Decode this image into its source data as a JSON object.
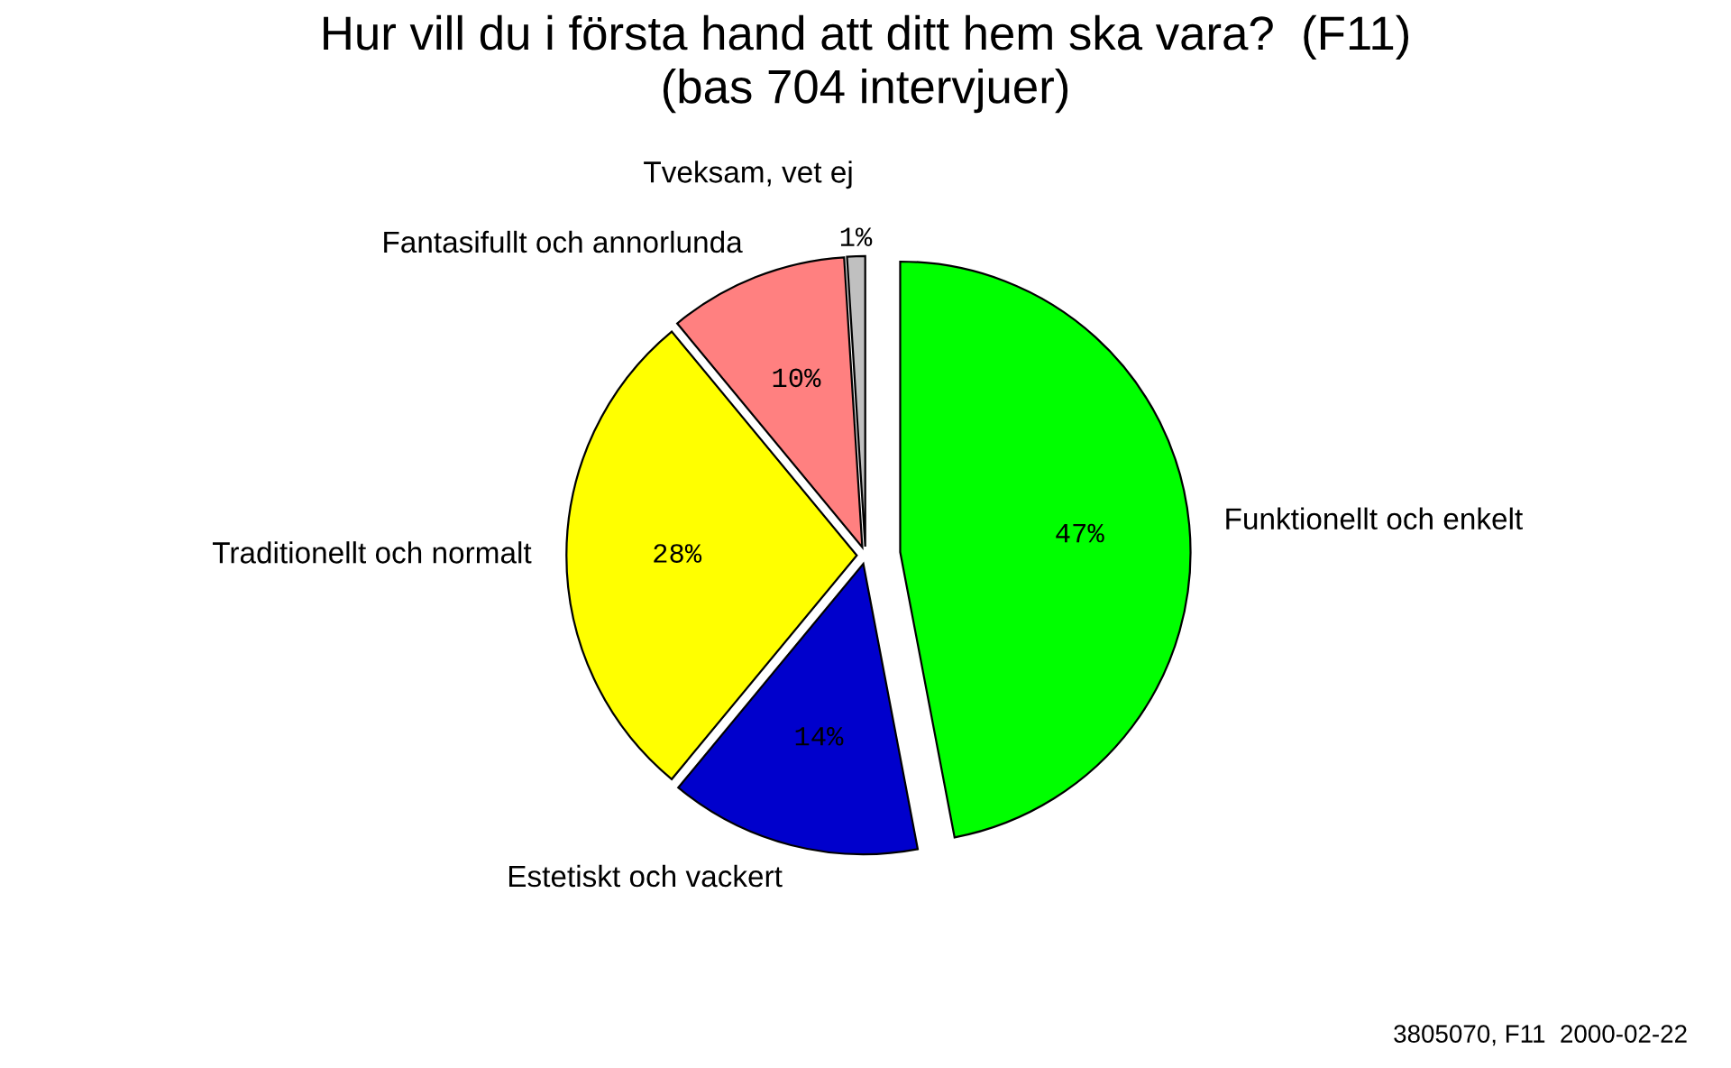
{
  "chart_data": {
    "type": "pie",
    "title": "Hur vill du i första hand att ditt hem ska vara?  (F11)",
    "subtitle": "(bas 704 intervjuer)",
    "categories": [
      "Funktionellt och enkelt",
      "Estetiskt och vackert",
      "Traditionellt och normalt",
      "Fantasifullt och annorlunda",
      "Tveksam, vet ej"
    ],
    "values": [
      47,
      14,
      28,
      10,
      1
    ],
    "value_labels": [
      "47%",
      "14%",
      "28%",
      "10%",
      "1%"
    ],
    "colors": [
      "#00ff00",
      "#0000cc",
      "#ffff00",
      "#ff8080",
      "#c0c0c0"
    ],
    "annotations": [
      "3805070, F11  2000-02-22"
    ]
  }
}
